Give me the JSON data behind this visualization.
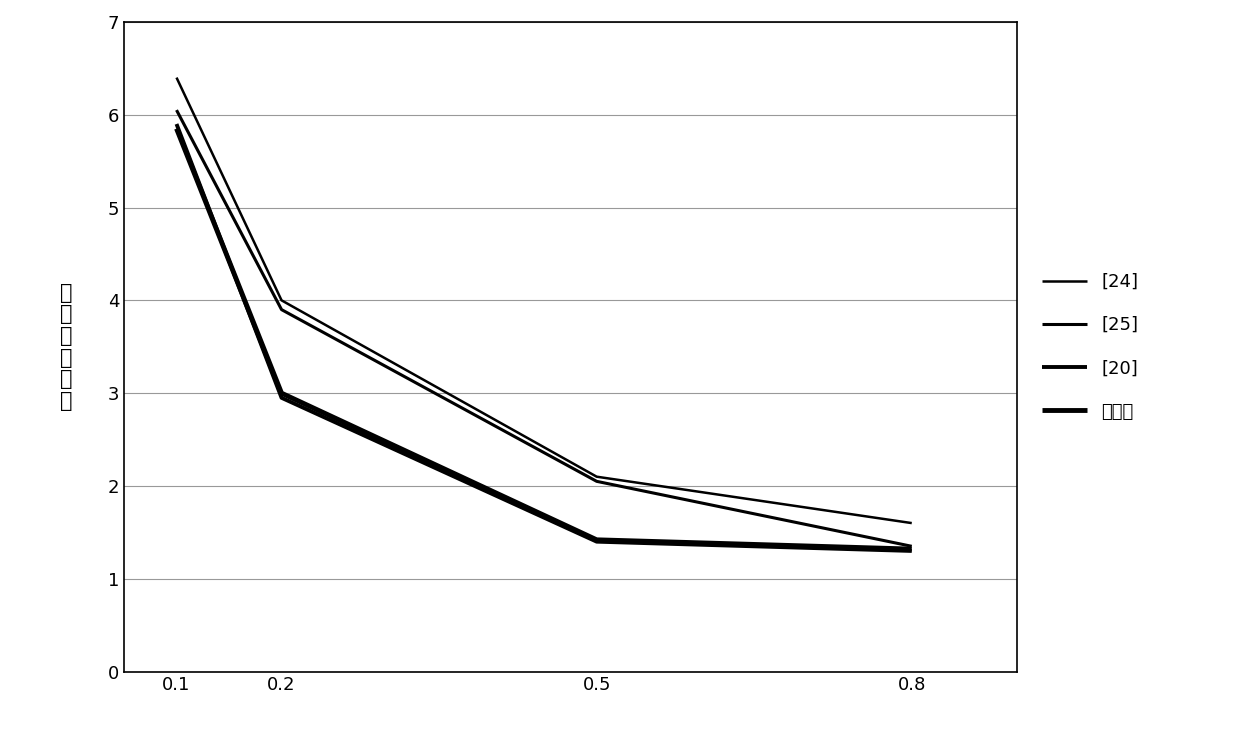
{
  "x": [
    0.1,
    0.2,
    0.5,
    0.8
  ],
  "series": {
    "[24]": [
      6.4,
      4.0,
      2.1,
      1.6
    ],
    "[25]": [
      6.05,
      3.9,
      2.05,
      1.35
    ],
    "[20]": [
      5.9,
      2.95,
      1.4,
      1.3
    ],
    "本发明": [
      5.85,
      3.0,
      1.42,
      1.32
    ]
  },
  "line_widths": {
    "[24]": 1.8,
    "[25]": 2.2,
    "[20]": 2.8,
    "本发明": 3.5
  },
  "ylabel": "时滞稳定裕度",
  "ylim": [
    0,
    7
  ],
  "yticks": [
    0,
    1,
    2,
    3,
    4,
    5,
    6,
    7
  ],
  "xticks": [
    0.1,
    0.2,
    0.5,
    0.8
  ],
  "background_color": "#ffffff",
  "grid_color": "#999999",
  "legend_fontsize": 13,
  "ylabel_fontsize": 15,
  "tick_fontsize": 13,
  "line_color": "#000000"
}
